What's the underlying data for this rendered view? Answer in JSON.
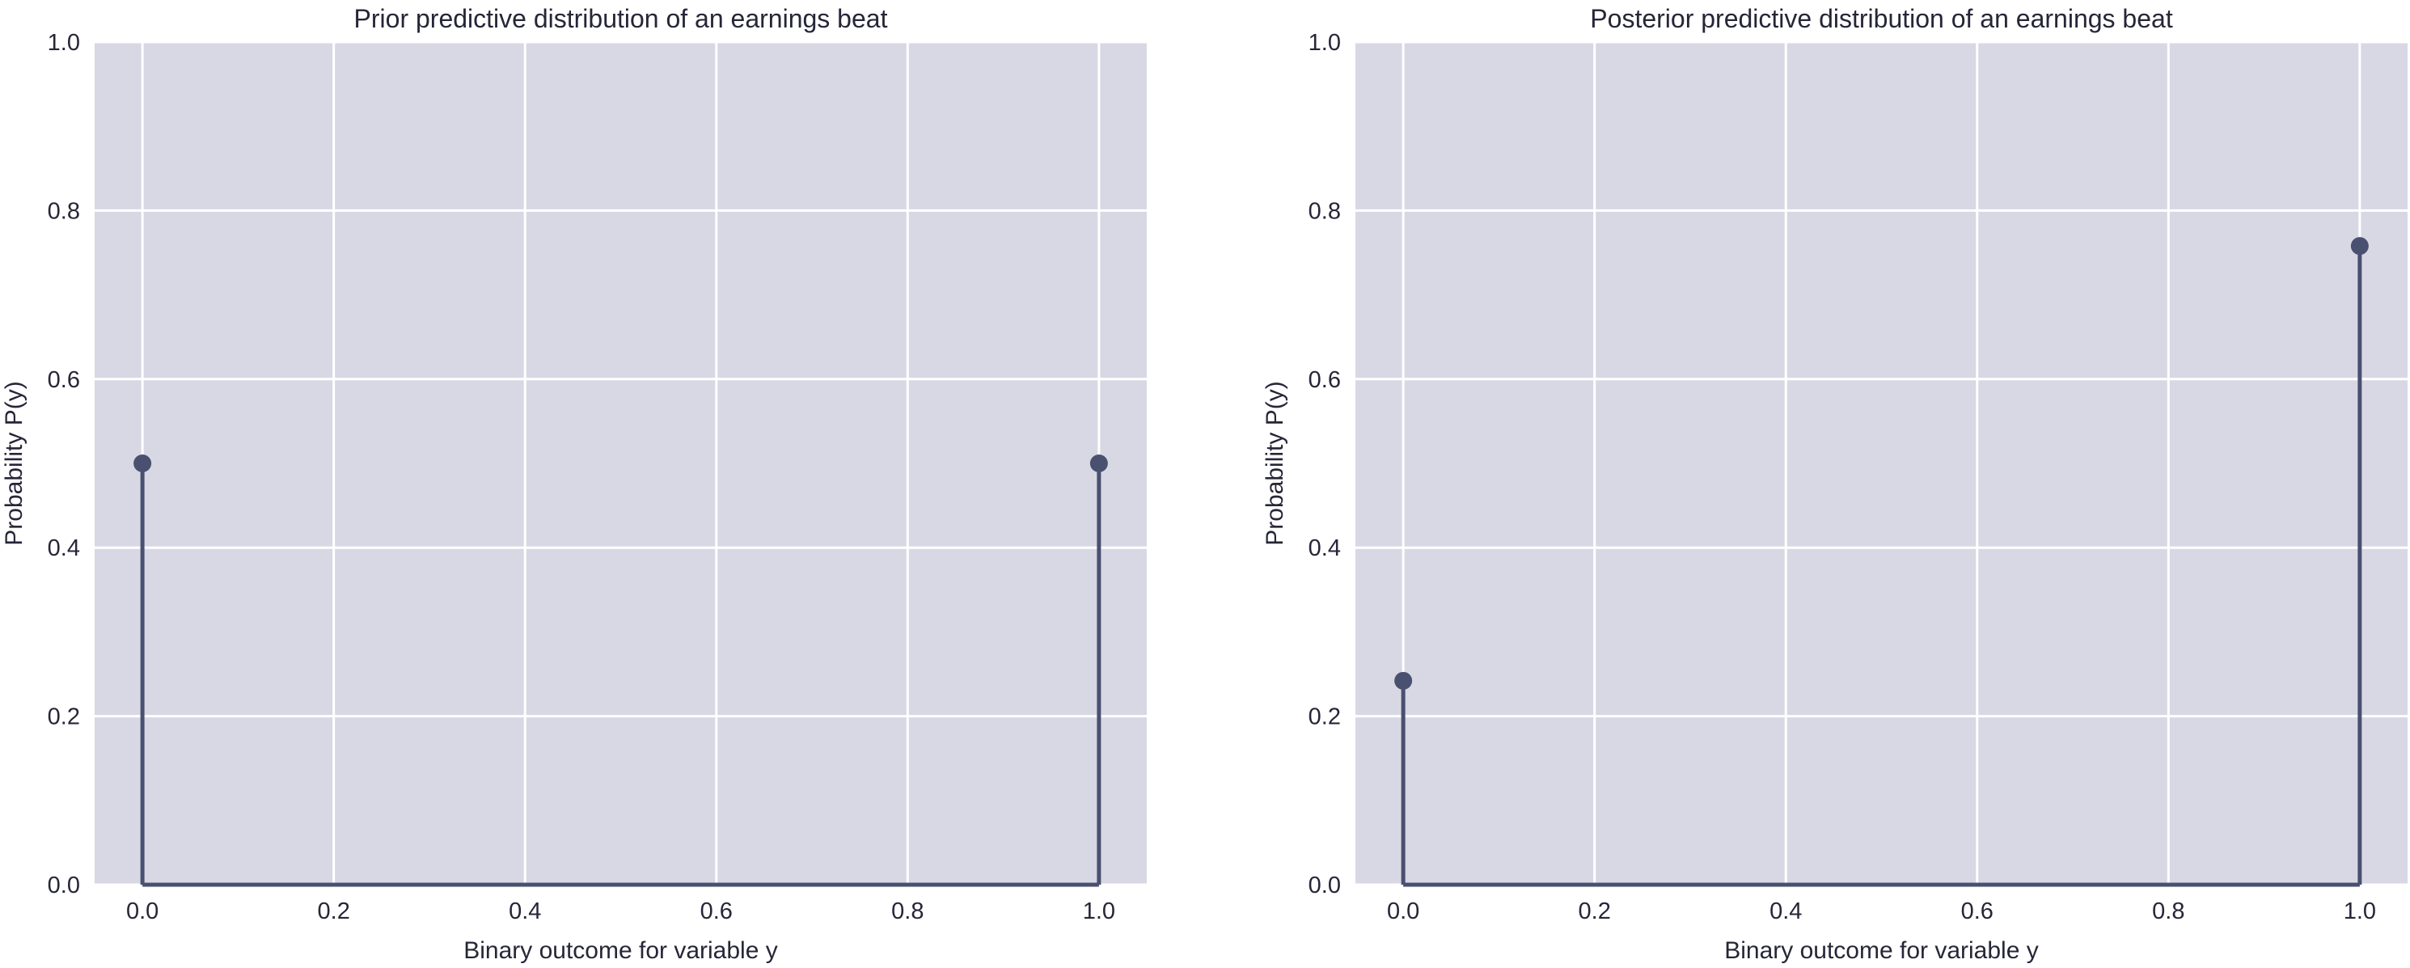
{
  "chart_data": [
    {
      "type": "stem",
      "title": "Prior predictive distribution of an earnings beat",
      "xlabel": "Binary outcome for variable y",
      "ylabel": "Probability P(y)",
      "x": [
        0.0,
        1.0
      ],
      "y": [
        0.5,
        0.5
      ],
      "xlim": [
        -0.05,
        1.05
      ],
      "ylim": [
        0.0,
        1.0
      ],
      "xticks": [
        "0.0",
        "0.2",
        "0.4",
        "0.6",
        "0.8",
        "1.0"
      ],
      "yticks": [
        "0.0",
        "0.2",
        "0.4",
        "0.6",
        "0.8",
        "1.0"
      ],
      "grid": true,
      "colors": {
        "stem": "#4a5070",
        "background": "#d8d8e4",
        "grid": "#ffffff"
      }
    },
    {
      "type": "stem",
      "title": "Posterior predictive distribution of an earnings beat",
      "xlabel": "Binary outcome for variable y",
      "ylabel": "Probability P(y)",
      "x": [
        0.0,
        1.0
      ],
      "y": [
        0.242,
        0.758
      ],
      "xlim": [
        -0.05,
        1.05
      ],
      "ylim": [
        0.0,
        1.0
      ],
      "xticks": [
        "0.0",
        "0.2",
        "0.4",
        "0.6",
        "0.8",
        "1.0"
      ],
      "yticks": [
        "0.0",
        "0.2",
        "0.4",
        "0.6",
        "0.8",
        "1.0"
      ],
      "grid": true,
      "colors": {
        "stem": "#4a5070",
        "background": "#d8d8e4",
        "grid": "#ffffff"
      }
    }
  ]
}
